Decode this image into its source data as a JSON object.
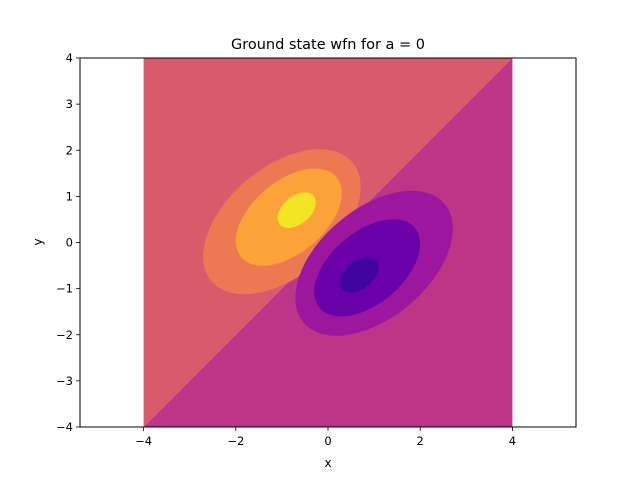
{
  "chart_data": {
    "type": "contour",
    "title": "Ground state wfn for a = 0",
    "xlabel": "x",
    "ylabel": "y",
    "xlim": [
      -5.38,
      5.38
    ],
    "ylim": [
      -4,
      4
    ],
    "xticks": [
      -4,
      -2,
      0,
      2,
      4
    ],
    "xtick_labels": [
      "−4",
      "−2",
      "0",
      "2",
      "4"
    ],
    "yticks": [
      -4,
      -3,
      -2,
      -1,
      0,
      1,
      2,
      3,
      4
    ],
    "ytick_labels": [
      "−4",
      "−3",
      "−2",
      "−1",
      "0",
      "1",
      "2",
      "3",
      "4"
    ],
    "data_extent": {
      "x": [
        -4,
        4
      ],
      "y": [
        -4,
        4
      ]
    },
    "colormap": "plasma",
    "background_regions": [
      {
        "region": "upper-left triangle (y > x)",
        "color": "#d95a6a"
      },
      {
        "region": "lower-right triangle (y < x)",
        "color": "#bc3587"
      }
    ],
    "lobes": [
      {
        "sign": "positive",
        "levels": [
          {
            "center": [
              -1.0,
              0.45
            ],
            "half_axes": [
              2.0,
              1.18
            ],
            "angle_deg": 40,
            "color": "#ed7953"
          },
          {
            "center": [
              -0.85,
              0.55
            ],
            "half_axes": [
              1.35,
              0.78
            ],
            "angle_deg": 40,
            "color": "#fba238"
          },
          {
            "center": [
              -0.68,
              0.7
            ],
            "half_axes": [
              0.48,
              0.3
            ],
            "angle_deg": 40,
            "color": "#f4e524"
          }
        ]
      },
      {
        "sign": "negative",
        "levels": [
          {
            "center": [
              1.0,
              -0.45
            ],
            "half_axes": [
              2.0,
              1.18
            ],
            "angle_deg": 40,
            "color": "#9c179e"
          },
          {
            "center": [
              0.85,
              -0.55
            ],
            "half_axes": [
              1.35,
              0.78
            ],
            "angle_deg": 40,
            "color": "#6a00a8"
          },
          {
            "center": [
              0.68,
              -0.7
            ],
            "half_axes": [
              0.48,
              0.3
            ],
            "angle_deg": 40,
            "color": "#3f049c"
          }
        ]
      }
    ],
    "grid": false,
    "legend": "none"
  }
}
